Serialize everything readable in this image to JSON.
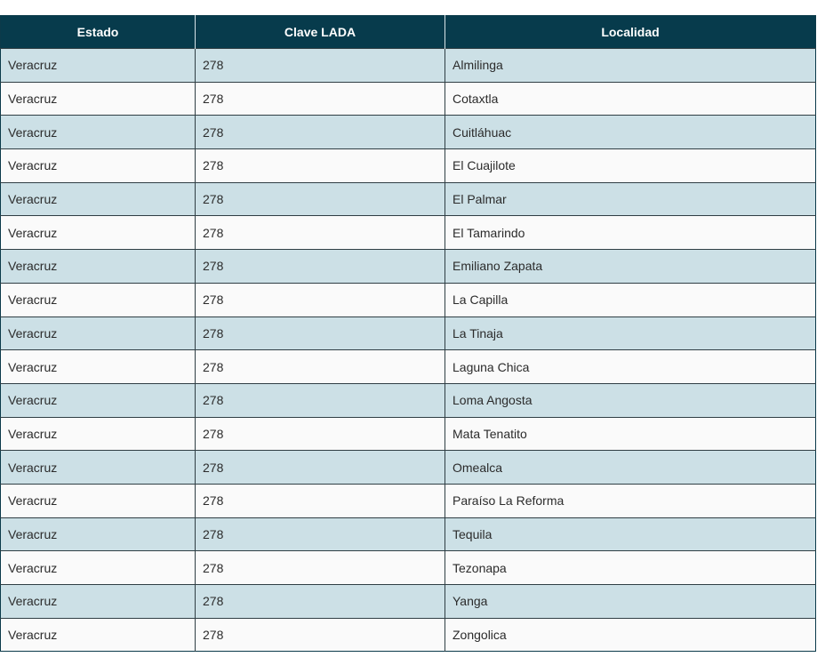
{
  "table": {
    "headers": [
      "Estado",
      "Clave LADA",
      "Localidad"
    ],
    "rows": [
      [
        "Veracruz",
        "278",
        "Almilinga"
      ],
      [
        "Veracruz",
        "278",
        "Cotaxtla"
      ],
      [
        "Veracruz",
        "278",
        "Cuitláhuac"
      ],
      [
        "Veracruz",
        "278",
        "El Cuajilote"
      ],
      [
        "Veracruz",
        "278",
        "El Palmar"
      ],
      [
        "Veracruz",
        "278",
        "El Tamarindo"
      ],
      [
        "Veracruz",
        "278",
        "Emiliano Zapata"
      ],
      [
        "Veracruz",
        "278",
        "La Capilla"
      ],
      [
        "Veracruz",
        "278",
        "La Tinaja"
      ],
      [
        "Veracruz",
        "278",
        "Laguna Chica"
      ],
      [
        "Veracruz",
        "278",
        "Loma Angosta"
      ],
      [
        "Veracruz",
        "278",
        "Mata Tenatito"
      ],
      [
        "Veracruz",
        "278",
        "Omealca"
      ],
      [
        "Veracruz",
        "278",
        "Paraíso La Reforma"
      ],
      [
        "Veracruz",
        "278",
        "Tequila"
      ],
      [
        "Veracruz",
        "278",
        "Tezonapa"
      ],
      [
        "Veracruz",
        "278",
        "Yanga"
      ],
      [
        "Veracruz",
        "278",
        "Zongolica"
      ]
    ]
  },
  "colors": {
    "header_bg": "#073b4c",
    "row_odd": "#cce0e6",
    "row_even": "#fafafa"
  }
}
